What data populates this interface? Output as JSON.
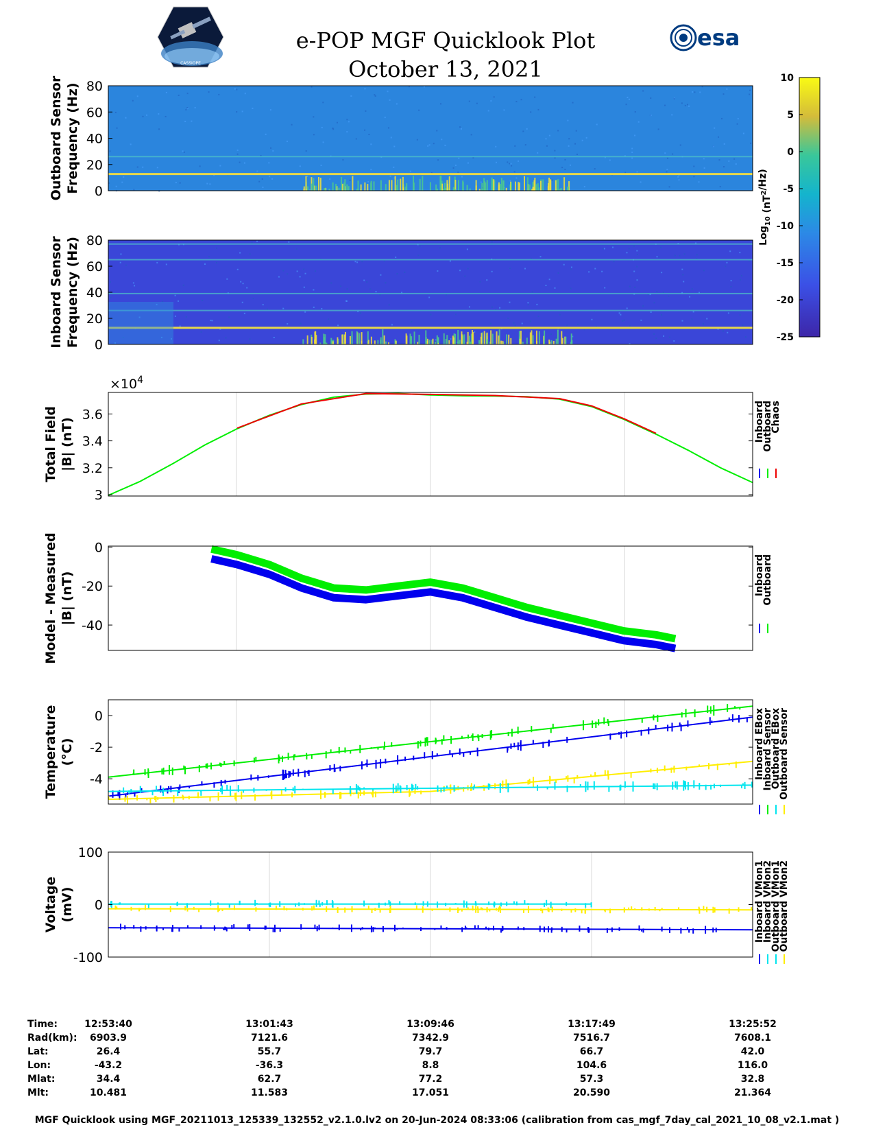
{
  "title_lines": [
    "e-POP MGF Quicklook Plot",
    "October 13, 2021"
  ],
  "logos": [
    "cassiope-logo",
    "esa-logo"
  ],
  "logo_text": {
    "esa": "esa",
    "cassiope": "CASSIOPE"
  },
  "colors": {
    "inboard": "#0000ee",
    "outboard": "#00ee00",
    "chaos": "#ee0000",
    "cyan": "#00e5ee",
    "yellow": "#ffee00",
    "spectro_bg": "#2b85dd",
    "spectro_bg_inboard": "#3a46d8"
  },
  "chart_data": [
    {
      "type": "heatmap",
      "ylabel": [
        "Outboard Sensor",
        "Frequency (Hz)"
      ],
      "ylim": [
        0,
        80
      ],
      "yticks": [
        0,
        20,
        40,
        60,
        80
      ],
      "bands_hz": [
        13,
        26
      ]
    },
    {
      "type": "heatmap",
      "ylabel": [
        "Inboard Sensor",
        "Frequency (Hz)"
      ],
      "ylim": [
        0,
        80
      ],
      "yticks": [
        0,
        20,
        40,
        60,
        80
      ],
      "bands_hz": [
        13,
        26,
        39,
        65,
        77
      ]
    },
    {
      "type": "colorbar",
      "label_main": "Log",
      "label_sub": "10",
      "label_unit": " (nT",
      "label_sup": "2",
      "label_tail": "/Hz)",
      "ticks": [
        10,
        5,
        0,
        -5,
        -10,
        -15,
        -20,
        -25
      ],
      "range": [
        -25,
        10
      ]
    },
    {
      "type": "line",
      "ylabel": [
        "Total Field",
        "|B| (nT)"
      ],
      "exponent_label": "×10",
      "exponent_power": "4",
      "ylim": [
        29900,
        37600
      ],
      "yticks": [
        30000,
        32000,
        34000,
        36000
      ],
      "ytick_labels": [
        "3",
        "3.2",
        "3.4",
        "3.6"
      ],
      "legend": [
        "Inboard",
        "Outboard",
        "Chaos"
      ],
      "series": [
        {
          "name": "Outboard",
          "x": [
            0,
            0.05,
            0.1,
            0.15,
            0.2,
            0.25,
            0.3,
            0.35,
            0.4,
            0.45,
            0.5,
            0.55,
            0.6,
            0.65,
            0.7,
            0.75,
            0.8,
            0.85,
            0.9,
            0.95,
            1.0
          ],
          "values": [
            29950,
            31000,
            32300,
            33700,
            34900,
            35900,
            36700,
            37250,
            37480,
            37520,
            37410,
            37350,
            37330,
            37280,
            37100,
            36550,
            35600,
            34500,
            33300,
            32000,
            30900
          ]
        },
        {
          "name": "Chaos",
          "x": [
            0.2,
            0.3,
            0.4,
            0.5,
            0.6,
            0.7,
            0.75,
            0.8,
            0.85
          ],
          "values": [
            34950,
            36750,
            37520,
            37450,
            37370,
            37140,
            36600,
            35650,
            34560
          ]
        }
      ]
    },
    {
      "type": "line",
      "ylabel": [
        "Model - Measured",
        "|B| (nT)"
      ],
      "ylim": [
        -53,
        0.5
      ],
      "yticks": [
        0,
        -20,
        -40
      ],
      "legend": [
        "Inboard",
        "Outboard"
      ],
      "series": [
        {
          "name": "Outboard",
          "x": [
            0.16,
            0.2,
            0.25,
            0.3,
            0.35,
            0.4,
            0.45,
            0.5,
            0.55,
            0.6,
            0.65,
            0.7,
            0.75,
            0.8,
            0.85,
            0.88
          ],
          "values": [
            -1,
            -4,
            -9,
            -16,
            -21,
            -22,
            -20,
            -18,
            -21,
            -26,
            -31,
            -35,
            -39,
            -43,
            -45,
            -47
          ]
        },
        {
          "name": "Inboard",
          "x": [
            0.16,
            0.2,
            0.25,
            0.3,
            0.35,
            0.4,
            0.45,
            0.5,
            0.55,
            0.6,
            0.65,
            0.7,
            0.75,
            0.8,
            0.85,
            0.88
          ],
          "values": [
            -6,
            -9,
            -14,
            -21,
            -26,
            -27,
            -25,
            -23,
            -26,
            -31,
            -36,
            -40,
            -44,
            -48,
            -50,
            -52
          ]
        }
      ]
    },
    {
      "type": "line",
      "ylabel": [
        "Temperature",
        "(°C)"
      ],
      "ylim": [
        -5.6,
        1
      ],
      "yticks": [
        0,
        -2,
        -4
      ],
      "legend": [
        "Inboard EBox",
        "Inboard Sensor",
        "Outboard EBox",
        "Outboard Sensor"
      ],
      "series": [
        {
          "name": "Inboard Sensor",
          "x": [
            0,
            1
          ],
          "values": [
            -3.9,
            0.6
          ]
        },
        {
          "name": "Inboard EBox",
          "x": [
            0,
            1
          ],
          "values": [
            -5.1,
            -0.1
          ]
        },
        {
          "name": "Outboard Sensor",
          "x": [
            0,
            0.5,
            1
          ],
          "values": [
            -5.3,
            -4.8,
            -2.9
          ]
        },
        {
          "name": "Outboard EBox",
          "x": [
            0,
            1
          ],
          "values": [
            -4.8,
            -4.4
          ]
        }
      ]
    },
    {
      "type": "line",
      "ylabel": [
        "Voltage",
        "(mV)"
      ],
      "ylim": [
        -100,
        100
      ],
      "yticks": [
        100,
        0,
        -100
      ],
      "legend": [
        "Inboard VMon1",
        "Inboard VMon2",
        "Outboard VMon1",
        "Outboard VMon2"
      ],
      "series": [
        {
          "name": "Inboard VMon1",
          "x": [
            0,
            1
          ],
          "values": [
            -44,
            -48
          ]
        },
        {
          "name": "Outboard VMon1",
          "x": [
            0,
            0.47,
            0.75
          ],
          "values": [
            1,
            1,
            1
          ]
        },
        {
          "name": "Outboard VMon2",
          "x": [
            0,
            1
          ],
          "values": [
            -8,
            -10
          ]
        }
      ]
    }
  ],
  "info_table": {
    "labels": [
      "Time:",
      "Rad(km):",
      "Lat:",
      "Lon:",
      "Mlat:",
      "Mlt:"
    ],
    "columns": [
      [
        "12:53:40",
        "6903.9",
        "26.4",
        "-43.2",
        "34.4",
        "10.481"
      ],
      [
        "13:01:43",
        "7121.6",
        "55.7",
        "-36.3",
        "62.7",
        "11.583"
      ],
      [
        "13:09:46",
        "7342.9",
        "79.7",
        "8.8",
        "77.2",
        "17.051"
      ],
      [
        "13:17:49",
        "7516.7",
        "66.7",
        "104.6",
        "57.3",
        "20.590"
      ],
      [
        "13:25:52",
        "7608.1",
        "42.0",
        "116.0",
        "32.8",
        "21.364"
      ]
    ]
  },
  "footer": "MGF Quicklook using MGF_20211013_125339_132552_v2.1.0.lv2 on 20-Jun-2024 08:33:06 (calibration from cas_mgf_7day_cal_2021_10_08_v2.1.mat )"
}
